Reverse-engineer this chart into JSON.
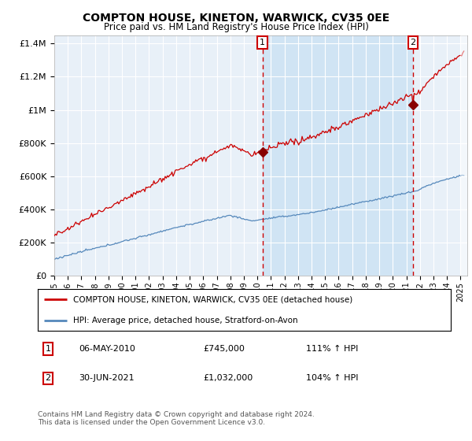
{
  "title": "COMPTON HOUSE, KINETON, WARWICK, CV35 0EE",
  "subtitle": "Price paid vs. HM Land Registry's House Price Index (HPI)",
  "legend_line1": "COMPTON HOUSE, KINETON, WARWICK, CV35 0EE (detached house)",
  "legend_line2": "HPI: Average price, detached house, Stratford-on-Avon",
  "marker1_date": "06-MAY-2010",
  "marker1_price": 745000,
  "marker1_label": "111% ↑ HPI",
  "marker2_date": "30-JUN-2021",
  "marker2_price": 1032000,
  "marker2_label": "104% ↑ HPI",
  "copyright": "Contains HM Land Registry data © Crown copyright and database right 2024.\nThis data is licensed under the Open Government Licence v3.0.",
  "house_color": "#cc0000",
  "hpi_color": "#5588bb",
  "background_color": "#e8f0f8",
  "shade_color": "#d0e4f4",
  "ylim": [
    0,
    1450000
  ],
  "yticks": [
    0,
    200000,
    400000,
    600000,
    800000,
    1000000,
    1200000,
    1400000
  ],
  "start_year": 1995,
  "end_year": 2025,
  "marker1_x": 2010.37,
  "marker2_x": 2021.5
}
